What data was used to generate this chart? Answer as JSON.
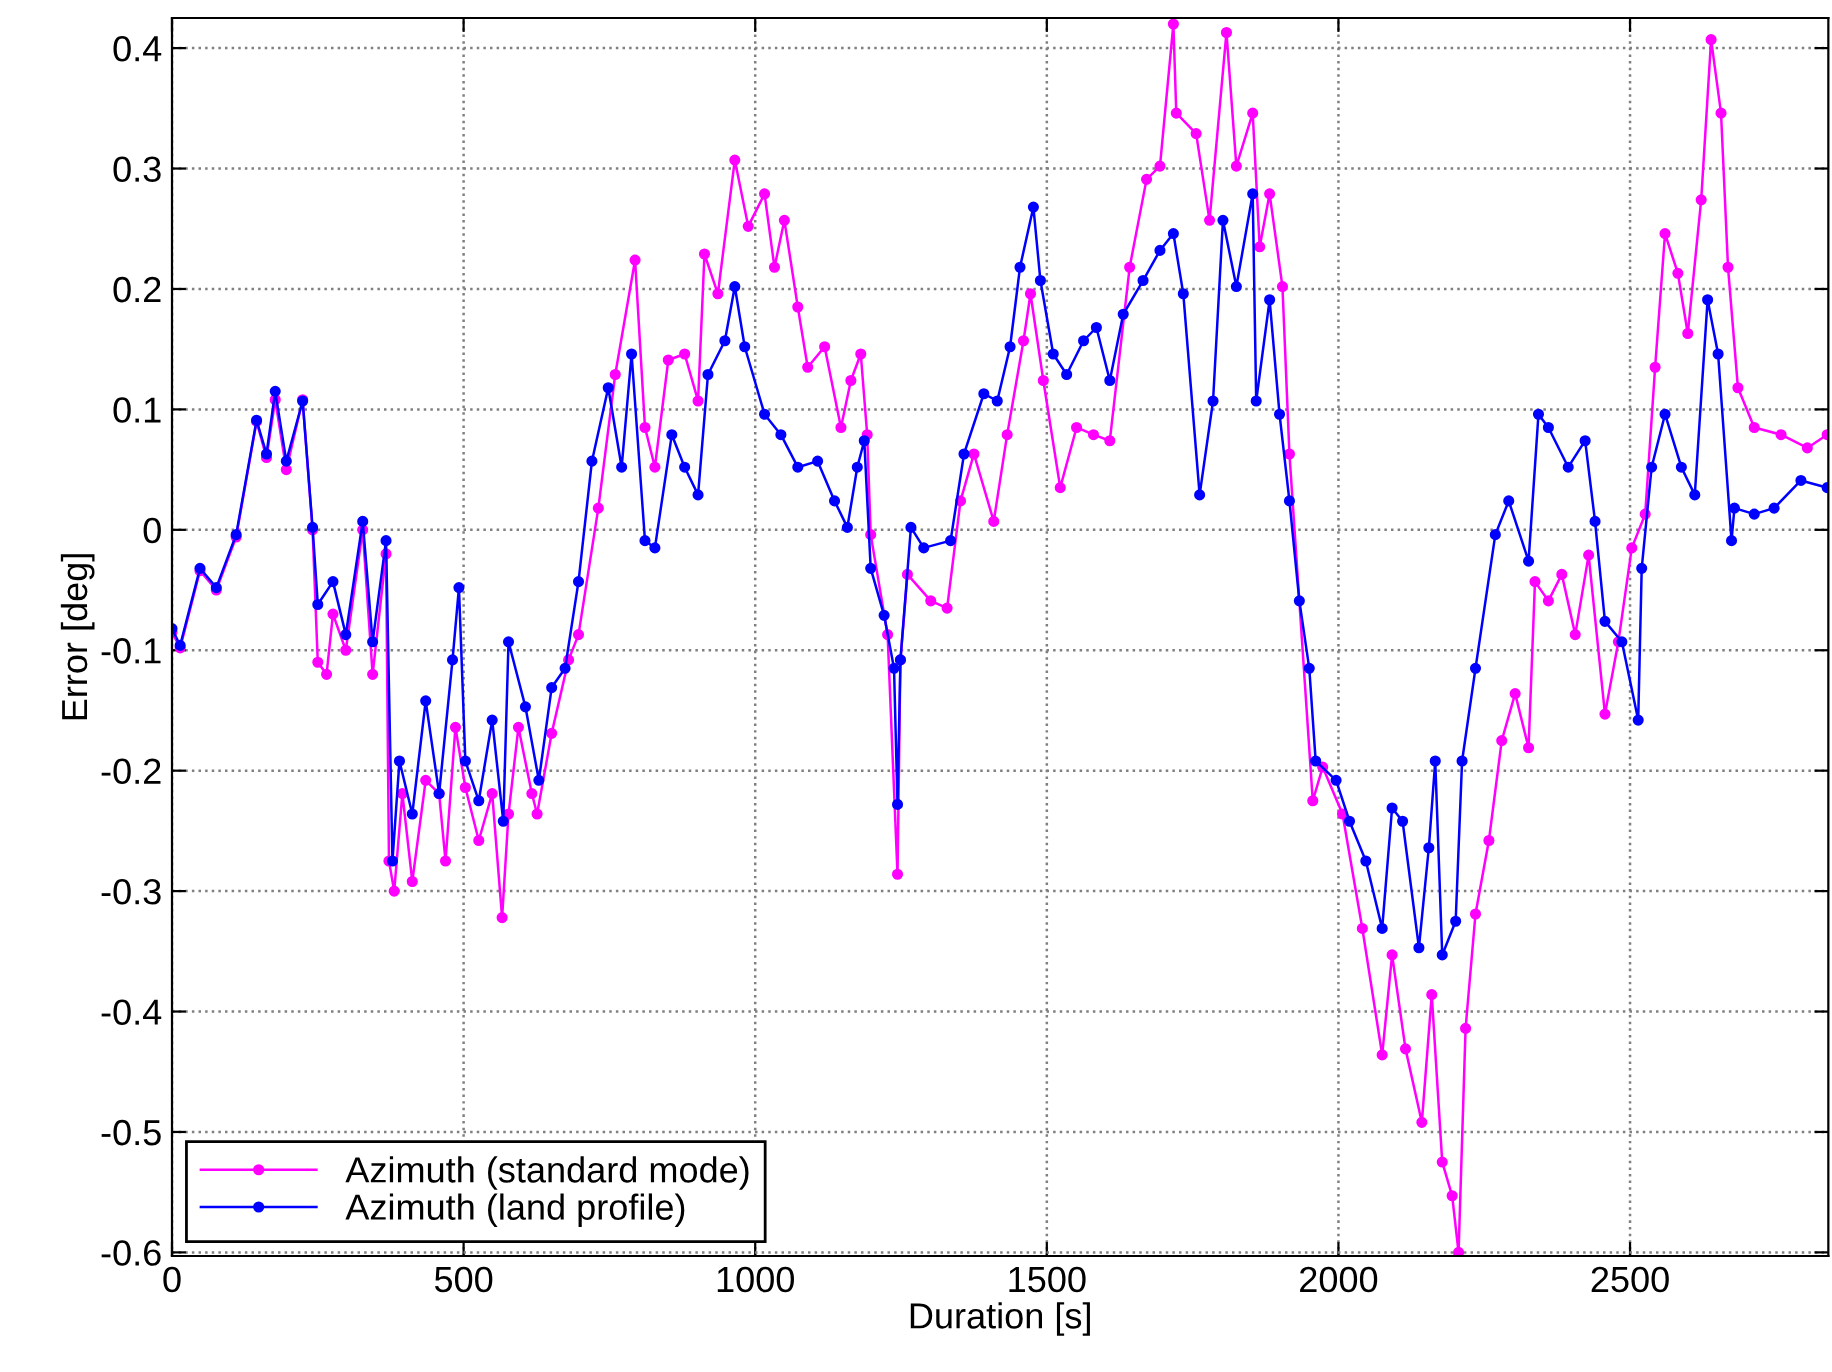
{
  "chart_data": {
    "type": "line",
    "xlabel": "Duration [s]",
    "ylabel": "Error [deg]",
    "xlim": [
      0,
      2840
    ],
    "ylim": [
      -0.603,
      0.425
    ],
    "xticks": [
      0,
      500,
      1000,
      1500,
      2000,
      2500
    ],
    "yticks": [
      -0.6,
      -0.5,
      -0.4,
      -0.3,
      -0.2,
      -0.1,
      0,
      0.1,
      0.2,
      0.3,
      0.4
    ],
    "grid": true,
    "legend": "bottom left",
    "marker": "circle",
    "line_style": "solid",
    "series": [
      {
        "name": "Azimuth (standard mode)",
        "color": "#ff00ff",
        "x": [
          0,
          14,
          48,
          76,
          110,
          145,
          162,
          177,
          196,
          224,
          241,
          250,
          265,
          276,
          298,
          327,
          344,
          367,
          372,
          381,
          395,
          412,
          435,
          458,
          469,
          486,
          503,
          526,
          549,
          566,
          577,
          594,
          617,
          626,
          651,
          680,
          697,
          731,
          760,
          794,
          811,
          828,
          851,
          879,
          902,
          913,
          936,
          965,
          988,
          1016,
          1033,
          1050,
          1073,
          1090,
          1119,
          1147,
          1164,
          1181,
          1192,
          1198,
          1227,
          1244,
          1249,
          1261,
          1301,
          1329,
          1352,
          1375,
          1409,
          1432,
          1460,
          1472,
          1494,
          1523,
          1551,
          1580,
          1608,
          1642,
          1671,
          1694,
          1717,
          1722,
          1756,
          1779,
          1808,
          1825,
          1853,
          1865,
          1882,
          1904,
          1916,
          1956,
          1973,
          2007,
          2041,
          2075,
          2092,
          2115,
          2143,
          2160,
          2178,
          2195,
          2206,
          2218,
          2235,
          2258,
          2280,
          2303,
          2326,
          2337,
          2360,
          2383,
          2406,
          2429,
          2457,
          2480,
          2503,
          2526,
          2543,
          2560,
          2582,
          2599,
          2622,
          2639,
          2656,
          2668,
          2685,
          2713,
          2759,
          2804,
          2838
        ],
        "values": [
          -0.085,
          -0.098,
          -0.034,
          -0.05,
          -0.006,
          0.09,
          0.06,
          0.108,
          0.05,
          0.108,
          0.0,
          -0.11,
          -0.12,
          -0.07,
          -0.1,
          0.0,
          -0.12,
          -0.02,
          -0.275,
          -0.3,
          -0.219,
          -0.292,
          -0.208,
          -0.219,
          -0.275,
          -0.164,
          -0.214,
          -0.258,
          -0.219,
          -0.322,
          -0.236,
          -0.164,
          -0.219,
          -0.236,
          -0.169,
          -0.108,
          -0.087,
          0.018,
          0.129,
          0.224,
          0.085,
          0.052,
          0.141,
          0.146,
          0.107,
          0.229,
          0.196,
          0.307,
          0.252,
          0.279,
          0.218,
          0.257,
          0.185,
          0.135,
          0.152,
          0.085,
          0.124,
          0.146,
          0.079,
          -0.004,
          -0.087,
          -0.286,
          -0.108,
          -0.037,
          -0.059,
          -0.065,
          0.024,
          0.063,
          0.007,
          0.079,
          0.157,
          0.196,
          0.124,
          0.035,
          0.085,
          0.079,
          0.074,
          0.218,
          0.291,
          0.302,
          0.42,
          0.346,
          0.329,
          0.257,
          0.413,
          0.302,
          0.346,
          0.235,
          0.279,
          0.202,
          0.063,
          -0.225,
          -0.197,
          -0.236,
          -0.331,
          -0.436,
          -0.353,
          -0.431,
          -0.492,
          -0.386,
          -0.525,
          -0.553,
          -0.6,
          -0.414,
          -0.319,
          -0.258,
          -0.175,
          -0.136,
          -0.181,
          -0.043,
          -0.059,
          -0.037,
          -0.087,
          -0.021,
          -0.153,
          -0.093,
          -0.015,
          0.013,
          0.135,
          0.246,
          0.213,
          0.163,
          0.274,
          0.407,
          0.346,
          0.218,
          0.118,
          0.085,
          0.079,
          0.068,
          0.079
        ]
      },
      {
        "name": "Azimuth (land profile)",
        "color": "#0000ff",
        "x": [
          0,
          14,
          48,
          76,
          110,
          145,
          162,
          177,
          196,
          224,
          241,
          250,
          276,
          298,
          327,
          344,
          367,
          378,
          390,
          412,
          435,
          458,
          481,
          492,
          503,
          526,
          549,
          568,
          577,
          606,
          629,
          651,
          674,
          697,
          720,
          748,
          771,
          788,
          811,
          828,
          857,
          879,
          902,
          919,
          948,
          965,
          982,
          1016,
          1044,
          1073,
          1107,
          1136,
          1158,
          1175,
          1187,
          1198,
          1221,
          1238,
          1244,
          1249,
          1267,
          1289,
          1335,
          1358,
          1392,
          1415,
          1437,
          1454,
          1477,
          1489,
          1511,
          1534,
          1563,
          1585,
          1608,
          1631,
          1665,
          1694,
          1717,
          1734,
          1762,
          1785,
          1802,
          1825,
          1853,
          1859,
          1882,
          1899,
          1916,
          1933,
          1950,
          1961,
          1996,
          2019,
          2047,
          2075,
          2092,
          2110,
          2138,
          2155,
          2166,
          2178,
          2201,
          2212,
          2235,
          2269,
          2292,
          2326,
          2343,
          2360,
          2394,
          2423,
          2440,
          2457,
          2486,
          2514,
          2520,
          2537,
          2560,
          2588,
          2611,
          2633,
          2651,
          2674,
          2679,
          2713,
          2747,
          2793,
          2838
        ],
        "values": [
          -0.082,
          -0.096,
          -0.032,
          -0.048,
          -0.004,
          0.091,
          0.063,
          0.115,
          0.057,
          0.107,
          0.002,
          -0.062,
          -0.043,
          -0.087,
          0.007,
          -0.093,
          -0.009,
          -0.275,
          -0.192,
          -0.236,
          -0.142,
          -0.219,
          -0.108,
          -0.048,
          -0.192,
          -0.225,
          -0.158,
          -0.242,
          -0.093,
          -0.147,
          -0.208,
          -0.131,
          -0.115,
          -0.043,
          0.057,
          0.118,
          0.052,
          0.146,
          -0.009,
          -0.015,
          0.079,
          0.052,
          0.029,
          0.129,
          0.157,
          0.202,
          0.152,
          0.096,
          0.079,
          0.052,
          0.057,
          0.024,
          0.002,
          0.052,
          0.074,
          -0.032,
          -0.071,
          -0.115,
          -0.228,
          -0.108,
          0.002,
          -0.015,
          -0.009,
          0.063,
          0.113,
          0.107,
          0.152,
          0.218,
          0.268,
          0.207,
          0.146,
          0.129,
          0.157,
          0.168,
          0.124,
          0.179,
          0.207,
          0.232,
          0.246,
          0.196,
          0.029,
          0.107,
          0.257,
          0.202,
          0.279,
          0.107,
          0.191,
          0.096,
          0.024,
          -0.059,
          -0.115,
          -0.192,
          -0.208,
          -0.242,
          -0.275,
          -0.331,
          -0.231,
          -0.242,
          -0.347,
          -0.264,
          -0.192,
          -0.353,
          -0.325,
          -0.192,
          -0.115,
          -0.004,
          0.024,
          -0.026,
          0.096,
          0.085,
          0.052,
          0.074,
          0.007,
          -0.076,
          -0.093,
          -0.158,
          -0.032,
          0.052,
          0.096,
          0.052,
          0.029,
          0.191,
          0.146,
          -0.009,
          0.018,
          0.013,
          0.018,
          0.041,
          0.035
        ]
      }
    ]
  }
}
